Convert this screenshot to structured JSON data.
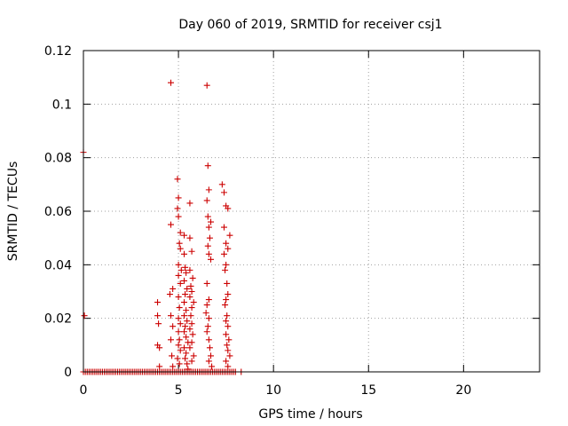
{
  "chart_data": {
    "type": "scatter",
    "title": "Day 060 of 2019, SRMTID for receiver csj1",
    "xlabel": "GPS time / hours",
    "ylabel": "SRMTID / TECUs",
    "xlim": [
      0,
      24
    ],
    "ylim": [
      0,
      0.12
    ],
    "xticks": [
      0,
      5,
      10,
      15,
      20
    ],
    "xtick_labels": [
      "0",
      "5",
      "10",
      "15",
      "20"
    ],
    "yticks": [
      0,
      0.02,
      0.04,
      0.06,
      0.08,
      0.1,
      0.12
    ],
    "ytick_labels": [
      "0",
      "0.02",
      "0.04",
      "0.06",
      "0.08",
      "0.1",
      "0.12"
    ],
    "grid": true,
    "marker": "+",
    "color": "#cc0000",
    "series": [
      {
        "points": [
          [
            0.0,
            0.082
          ],
          [
            0.05,
            0.021
          ],
          [
            0.0,
            0
          ],
          [
            0.1,
            0
          ],
          [
            0.2,
            0
          ],
          [
            0.3,
            0
          ],
          [
            0.4,
            0
          ],
          [
            0.5,
            0
          ],
          [
            0.6,
            0
          ],
          [
            0.7,
            0
          ],
          [
            0.8,
            0
          ],
          [
            0.9,
            0
          ],
          [
            1.0,
            0
          ],
          [
            1.1,
            0
          ],
          [
            1.2,
            0
          ],
          [
            1.3,
            0
          ],
          [
            1.4,
            0
          ],
          [
            1.5,
            0
          ],
          [
            1.6,
            0
          ],
          [
            1.7,
            0
          ],
          [
            1.8,
            0
          ],
          [
            1.9,
            0
          ],
          [
            2.0,
            0
          ],
          [
            2.1,
            0
          ],
          [
            2.2,
            0
          ],
          [
            2.3,
            0
          ],
          [
            2.4,
            0
          ],
          [
            2.5,
            0
          ],
          [
            2.6,
            0
          ],
          [
            2.7,
            0
          ],
          [
            2.8,
            0
          ],
          [
            2.9,
            0
          ],
          [
            3.0,
            0
          ],
          [
            3.1,
            0
          ],
          [
            3.2,
            0
          ],
          [
            3.3,
            0
          ],
          [
            3.4,
            0
          ],
          [
            3.5,
            0
          ],
          [
            3.6,
            0
          ],
          [
            3.7,
            0
          ],
          [
            3.8,
            0
          ],
          [
            3.9,
            0
          ],
          [
            4.0,
            0
          ],
          [
            4.1,
            0
          ],
          [
            4.2,
            0
          ],
          [
            4.3,
            0
          ],
          [
            4.4,
            0
          ],
          [
            4.5,
            0
          ],
          [
            4.6,
            0
          ],
          [
            4.7,
            0
          ],
          [
            4.8,
            0
          ],
          [
            4.9,
            0
          ],
          [
            5.0,
            0
          ],
          [
            5.1,
            0
          ],
          [
            5.2,
            0
          ],
          [
            5.3,
            0
          ],
          [
            5.4,
            0
          ],
          [
            5.5,
            0
          ],
          [
            5.6,
            0
          ],
          [
            5.7,
            0
          ],
          [
            5.8,
            0
          ],
          [
            5.9,
            0
          ],
          [
            6.0,
            0
          ],
          [
            6.1,
            0
          ],
          [
            6.2,
            0
          ],
          [
            6.3,
            0
          ],
          [
            6.4,
            0
          ],
          [
            6.5,
            0
          ],
          [
            6.6,
            0
          ],
          [
            6.7,
            0
          ],
          [
            6.8,
            0
          ],
          [
            6.9,
            0
          ],
          [
            7.0,
            0
          ],
          [
            7.1,
            0
          ],
          [
            7.2,
            0
          ],
          [
            7.3,
            0
          ],
          [
            7.4,
            0
          ],
          [
            7.5,
            0
          ],
          [
            7.6,
            0
          ],
          [
            7.7,
            0
          ],
          [
            7.8,
            0
          ],
          [
            7.9,
            0
          ],
          [
            8.0,
            0
          ],
          [
            8.3,
            0
          ],
          [
            3.9,
            0.026
          ],
          [
            3.9,
            0.021
          ],
          [
            3.95,
            0.018
          ],
          [
            3.9,
            0.01
          ],
          [
            4.0,
            0.009
          ],
          [
            4.0,
            0.002
          ],
          [
            4.6,
            0.108
          ],
          [
            4.6,
            0.055
          ],
          [
            4.7,
            0.031
          ],
          [
            4.55,
            0.029
          ],
          [
            4.6,
            0.021
          ],
          [
            4.7,
            0.017
          ],
          [
            4.6,
            0.012
          ],
          [
            4.65,
            0.006
          ],
          [
            4.7,
            0.002
          ],
          [
            4.95,
            0.072
          ],
          [
            5.0,
            0.065
          ],
          [
            4.95,
            0.061
          ],
          [
            5.0,
            0.058
          ],
          [
            5.1,
            0.052
          ],
          [
            5.05,
            0.048
          ],
          [
            5.1,
            0.046
          ],
          [
            5.0,
            0.04
          ],
          [
            5.15,
            0.038
          ],
          [
            5.0,
            0.036
          ],
          [
            5.1,
            0.033
          ],
          [
            5.0,
            0.028
          ],
          [
            5.05,
            0.024
          ],
          [
            5.0,
            0.02
          ],
          [
            5.1,
            0.018
          ],
          [
            5.0,
            0.015
          ],
          [
            5.05,
            0.012
          ],
          [
            5.0,
            0.01
          ],
          [
            5.1,
            0.008
          ],
          [
            4.95,
            0.005
          ],
          [
            5.05,
            0.003
          ],
          [
            5.3,
            0.051
          ],
          [
            5.3,
            0.044
          ],
          [
            5.35,
            0.039
          ],
          [
            5.4,
            0.037
          ],
          [
            5.3,
            0.034
          ],
          [
            5.45,
            0.031
          ],
          [
            5.35,
            0.029
          ],
          [
            5.3,
            0.026
          ],
          [
            5.4,
            0.023
          ],
          [
            5.3,
            0.021
          ],
          [
            5.45,
            0.019
          ],
          [
            5.35,
            0.017
          ],
          [
            5.3,
            0.015
          ],
          [
            5.4,
            0.013
          ],
          [
            5.5,
            0.011
          ],
          [
            5.3,
            0.009
          ],
          [
            5.4,
            0.007
          ],
          [
            5.35,
            0.005
          ],
          [
            5.45,
            0.003
          ],
          [
            5.5,
            0.001
          ],
          [
            5.6,
            0.063
          ],
          [
            5.6,
            0.05
          ],
          [
            5.7,
            0.045
          ],
          [
            5.6,
            0.038
          ],
          [
            5.75,
            0.035
          ],
          [
            5.65,
            0.032
          ],
          [
            5.7,
            0.03
          ],
          [
            5.6,
            0.028
          ],
          [
            5.8,
            0.026
          ],
          [
            5.7,
            0.024
          ],
          [
            5.65,
            0.021
          ],
          [
            5.7,
            0.018
          ],
          [
            5.6,
            0.016
          ],
          [
            5.75,
            0.014
          ],
          [
            5.7,
            0.011
          ],
          [
            5.6,
            0.009
          ],
          [
            5.8,
            0.006
          ],
          [
            5.7,
            0.004
          ],
          [
            6.5,
            0.107
          ],
          [
            6.55,
            0.077
          ],
          [
            6.6,
            0.068
          ],
          [
            6.5,
            0.064
          ],
          [
            6.55,
            0.058
          ],
          [
            6.7,
            0.056
          ],
          [
            6.6,
            0.054
          ],
          [
            6.65,
            0.05
          ],
          [
            6.55,
            0.047
          ],
          [
            6.6,
            0.044
          ],
          [
            6.7,
            0.042
          ],
          [
            6.5,
            0.033
          ],
          [
            6.6,
            0.027
          ],
          [
            6.5,
            0.025
          ],
          [
            6.45,
            0.022
          ],
          [
            6.6,
            0.02
          ],
          [
            6.55,
            0.017
          ],
          [
            6.5,
            0.015
          ],
          [
            6.6,
            0.012
          ],
          [
            6.65,
            0.009
          ],
          [
            6.7,
            0.006
          ],
          [
            6.6,
            0.004
          ],
          [
            6.75,
            0.002
          ],
          [
            7.3,
            0.07
          ],
          [
            7.4,
            0.067
          ],
          [
            7.5,
            0.062
          ],
          [
            7.6,
            0.061
          ],
          [
            7.4,
            0.054
          ],
          [
            7.7,
            0.051
          ],
          [
            7.5,
            0.048
          ],
          [
            7.6,
            0.046
          ],
          [
            7.4,
            0.044
          ],
          [
            7.5,
            0.04
          ],
          [
            7.45,
            0.038
          ],
          [
            7.55,
            0.033
          ],
          [
            7.6,
            0.029
          ],
          [
            7.5,
            0.027
          ],
          [
            7.45,
            0.025
          ],
          [
            7.55,
            0.021
          ],
          [
            7.5,
            0.019
          ],
          [
            7.6,
            0.017
          ],
          [
            7.5,
            0.014
          ],
          [
            7.65,
            0.012
          ],
          [
            7.55,
            0.01
          ],
          [
            7.6,
            0.008
          ],
          [
            7.7,
            0.006
          ],
          [
            7.5,
            0.004
          ],
          [
            7.6,
            0.002
          ]
        ]
      }
    ]
  }
}
